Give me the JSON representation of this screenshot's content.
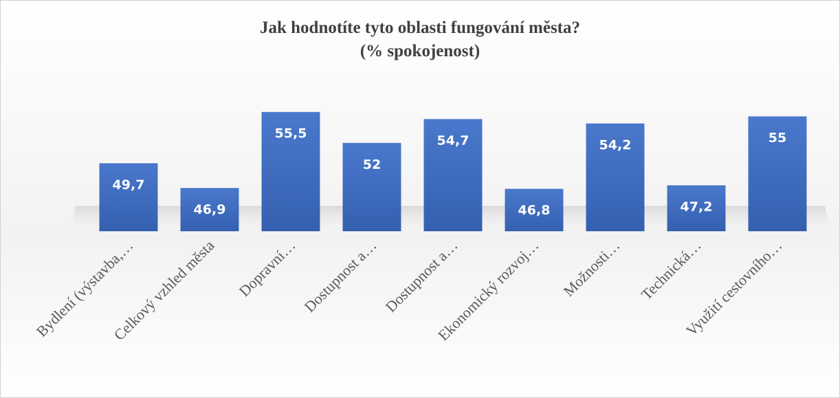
{
  "chart_data": {
    "type": "bar",
    "title": "Jak hodnotíte tyto oblasti fungování města?",
    "subtitle": "(% spokojenost)",
    "categories": [
      "Bydlení (výstavba,…",
      "Celkový vzhled města",
      "Dopravní…",
      "Dostupnost a…",
      "Dostupnost a…",
      "Ekonomický rozvoj…",
      "Možnosti…",
      "Technická…",
      "Využití cestovního…"
    ],
    "values": [
      49.7,
      46.9,
      55.5,
      52,
      54.7,
      46.8,
      54.2,
      47.2,
      55
    ],
    "value_labels": [
      "49,7",
      "46,9",
      "55,5",
      "52",
      "54,7",
      "46,8",
      "54,2",
      "47,2",
      "55"
    ],
    "color": "#4472c4",
    "ylim": [
      42,
      58
    ]
  }
}
